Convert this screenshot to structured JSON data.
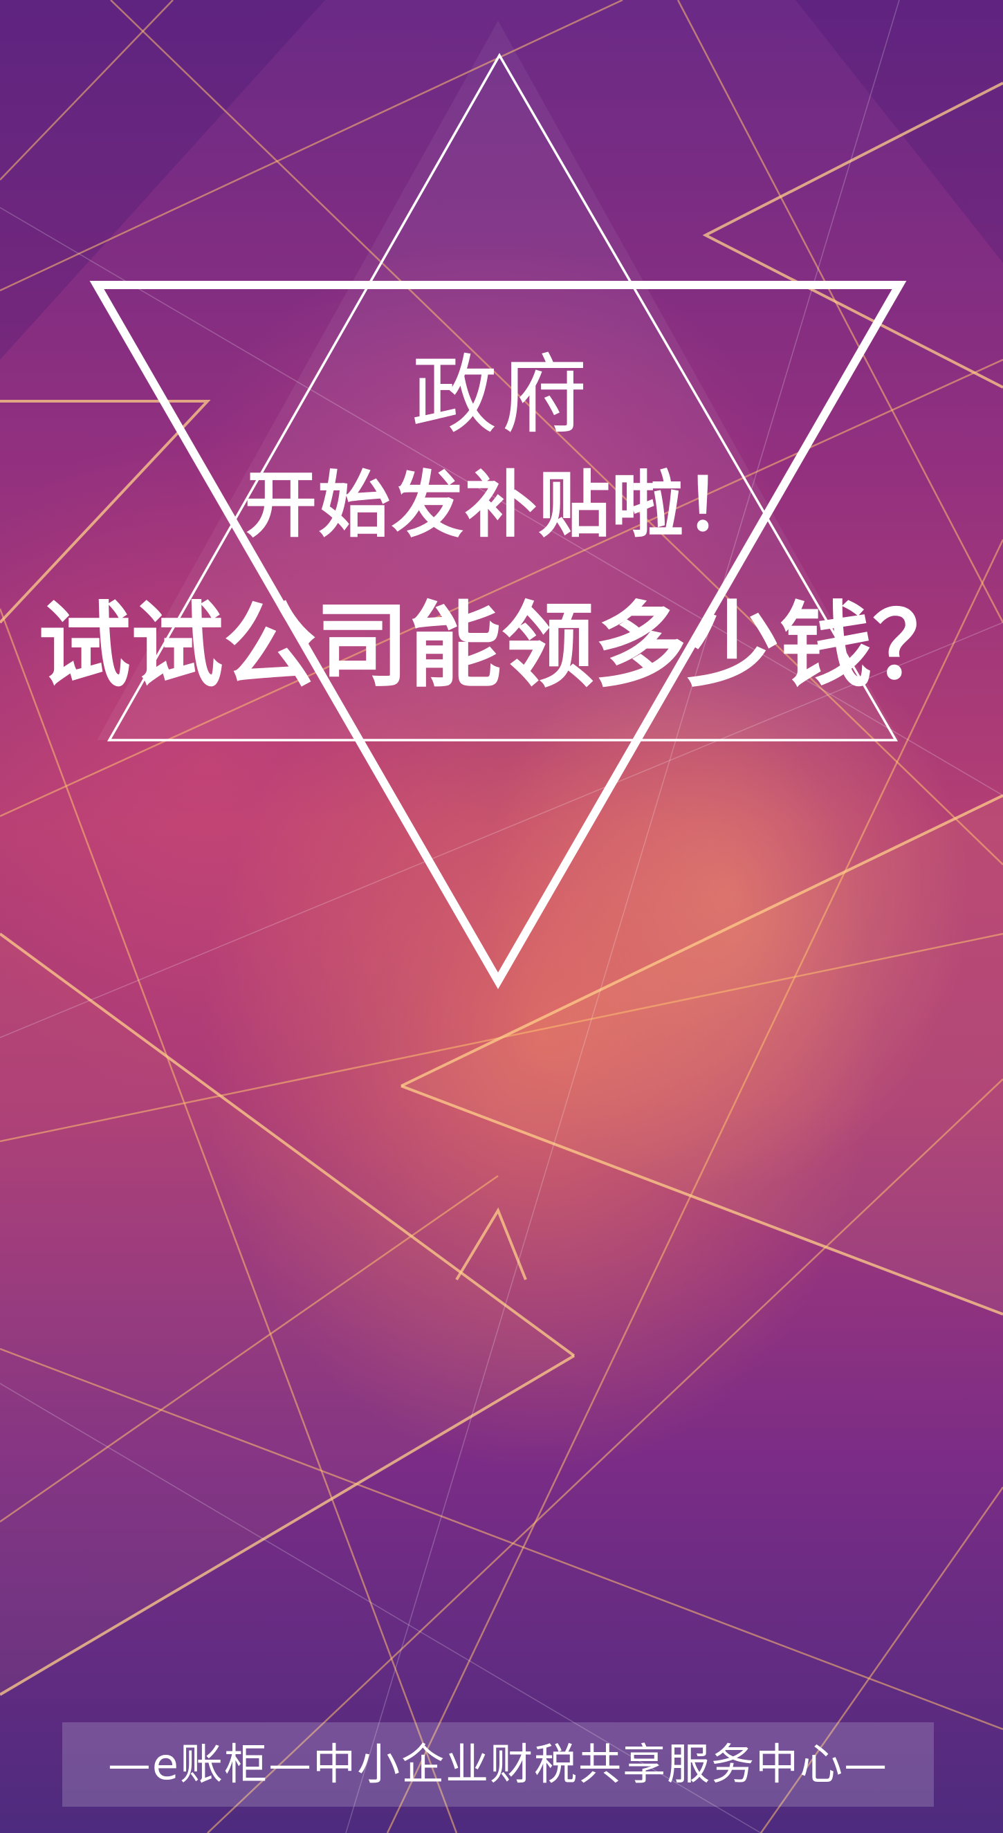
{
  "poster": {
    "headline_line1": "政府",
    "headline_line2": "开始发补贴啦！",
    "headline_line3": "试试公司能领多少钱？",
    "footer_text": "—e账柜—中小企业财税共享服务中心—"
  },
  "colors": {
    "background_top": "#6a2a86",
    "background_mid": "#b33f74",
    "background_bottom": "#4d2b7e",
    "glow_orange": "#ff9a5c",
    "line_gold": "#ffc070",
    "text": "#ffffff"
  },
  "icons": [
    "upright-triangle-outline",
    "inverted-triangle-outline"
  ]
}
